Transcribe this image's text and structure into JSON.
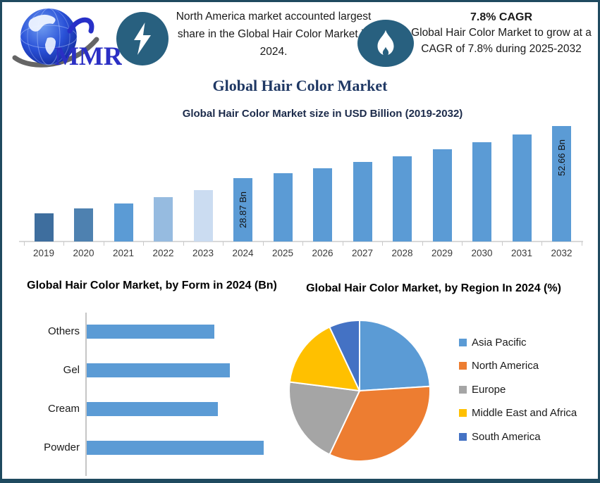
{
  "frame": {
    "border_color": "#1F4A5F"
  },
  "header": {
    "logo_text": "MMR",
    "note_left": "North America market accounted largest share in the Global Hair Color Market in 2024.",
    "cagr_title": "7.8% CAGR",
    "cagr_text": "Global Hair Color Market to grow at a CAGR of 7.8% during 2025-2032",
    "icon_circle_color": "#28607F",
    "icons": [
      "mmr-globe-logo",
      "lightning-icon",
      "flame-icon"
    ]
  },
  "page_title": "Global Hair Color Market",
  "colors": {
    "accent_blue": "#5B9BD5",
    "dark_navy_title": "#1F3864",
    "icon_teal": "#28607F"
  },
  "chart_data": [
    {
      "type": "bar",
      "title": "Global Hair Color Market size in USD Billion (2019-2032)",
      "ylabel": "USD Billion",
      "categories": [
        "2019",
        "2020",
        "2021",
        "2022",
        "2023",
        "2024",
        "2025",
        "2026",
        "2027",
        "2028",
        "2029",
        "2030",
        "2031",
        "2032"
      ],
      "values": [
        12.9,
        15.1,
        17.4,
        20.3,
        23.5,
        28.87,
        31.12,
        33.55,
        36.17,
        38.99,
        42.03,
        45.31,
        48.84,
        52.66
      ],
      "bar_labels": [
        "",
        "",
        "",
        "",
        "",
        "28.87 Bn",
        "",
        "",
        "",
        "",
        "",
        "",
        "",
        "52.66 Bn"
      ],
      "bar_colors": [
        "#3E6E9E",
        "#4E81B0",
        "#5B9BD5",
        "#96BBE0",
        "#CBDCF1",
        "#5B9BD5",
        "#5B9BD5",
        "#5B9BD5",
        "#5B9BD5",
        "#5B9BD5",
        "#5B9BD5",
        "#5B9BD5",
        "#5B9BD5",
        "#5B9BD5"
      ],
      "ylim": [
        0,
        55
      ],
      "y_axis_visible": false,
      "grid": false
    },
    {
      "type": "bar-horizontal",
      "title": "Global Hair Color Market, by Form in 2024 (Bn)",
      "categories": [
        "Others",
        "Gel",
        "Cream",
        "Powder"
      ],
      "values": [
        72,
        81,
        74,
        100
      ],
      "values_note": "relative length, max = 100 (no numeric axis shown in chart)",
      "bar_color": "#5B9BD5",
      "grid": false
    },
    {
      "type": "pie",
      "title": "Global Hair Color Market, by Region In 2024 (%)",
      "slices": [
        {
          "label": "Asia Pacific",
          "value": 24,
          "color": "#5B9BD5"
        },
        {
          "label": "North America",
          "value": 33,
          "color": "#ED7D31"
        },
        {
          "label": "Europe",
          "value": 20,
          "color": "#A5A5A5"
        },
        {
          "label": "Middle East and Africa",
          "value": 16,
          "color": "#FFC000"
        },
        {
          "label": "South America",
          "value": 7,
          "color": "#4472C4"
        }
      ],
      "start_angle_deg": 0,
      "direction": "clockwise",
      "legend_position": "right"
    }
  ]
}
